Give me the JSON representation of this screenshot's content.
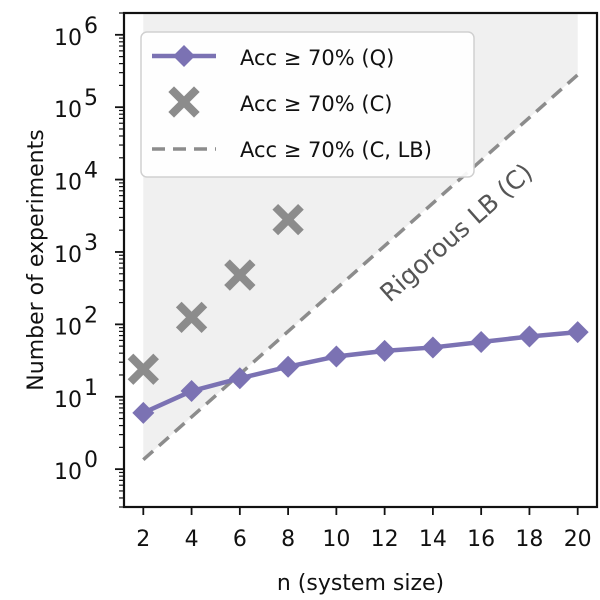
{
  "chart_data": {
    "type": "line",
    "xlabel": "n (system size)",
    "ylabel": "Number of experiments",
    "yscale": "log",
    "xlim": [
      1.2,
      20.8
    ],
    "ylim": [
      0.3,
      2000000
    ],
    "x_ticks": [
      2,
      4,
      6,
      8,
      10,
      12,
      14,
      16,
      18,
      20
    ],
    "y_ticks": [
      {
        "base": "10",
        "exp": "0",
        "value": 1
      },
      {
        "base": "10",
        "exp": "1",
        "value": 10
      },
      {
        "base": "10",
        "exp": "2",
        "value": 100
      },
      {
        "base": "10",
        "exp": "3",
        "value": 1000
      },
      {
        "base": "10",
        "exp": "4",
        "value": 10000
      },
      {
        "base": "10",
        "exp": "5",
        "value": 100000
      },
      {
        "base": "10",
        "exp": "6",
        "value": 1000000
      }
    ],
    "series": [
      {
        "name": "Acc ≥ 70% (Q)",
        "style": "line-diamond",
        "color": "#7b72b3",
        "x": [
          2,
          4,
          6,
          8,
          10,
          12,
          14,
          16,
          18,
          20
        ],
        "y": [
          6,
          12,
          18,
          26,
          36,
          43,
          48,
          57,
          68,
          78
        ]
      },
      {
        "name": "Acc ≥ 70% (C)",
        "style": "x-marker",
        "color": "#8c8c8c",
        "x": [
          2,
          4,
          6,
          8
        ],
        "y": [
          24,
          125,
          480,
          2800
        ]
      },
      {
        "name": "Acc ≥ 70% (C, LB)",
        "style": "dashed",
        "color": "#8c8c8c",
        "x": [
          2,
          20
        ],
        "y": [
          1.35,
          280000
        ]
      }
    ],
    "annotations": [
      {
        "text": "Rigorous LB (C)"
      }
    ],
    "shaded_region": {
      "description": "region above the lower bound",
      "color": "#f0f0f0"
    }
  }
}
